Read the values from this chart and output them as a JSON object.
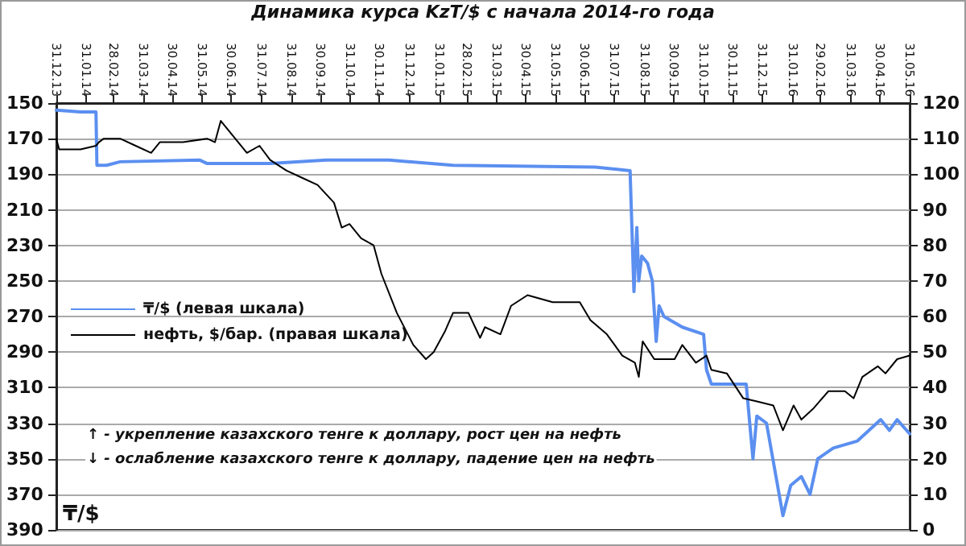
{
  "chart_data": {
    "type": "line",
    "title": "Динамика курса KzT/$ с начала 2014-го года",
    "ylabel": "₸/$",
    "annotations": [
      "↑ - укрепление казахского тенге к доллару, рост цен на нефть",
      "↓ - ослабление казахского тенге к доллару, падение цен на нефть"
    ],
    "xlim": [
      "2013-12-31",
      "2016-05-31"
    ],
    "xticks": [
      {
        "value": "2013-12-31",
        "label": "31.12.13"
      },
      {
        "value": "2014-01-31",
        "label": "31.01.14"
      },
      {
        "value": "2014-02-28",
        "label": "28.02.14"
      },
      {
        "value": "2014-03-31",
        "label": "31.03.14"
      },
      {
        "value": "2014-04-30",
        "label": "30.04.14"
      },
      {
        "value": "2014-05-31",
        "label": "31.05.14"
      },
      {
        "value": "2014-06-30",
        "label": "30.06.14"
      },
      {
        "value": "2014-07-31",
        "label": "31.07.14"
      },
      {
        "value": "2014-08-31",
        "label": "31.08.14"
      },
      {
        "value": "2014-09-30",
        "label": "30.09.14"
      },
      {
        "value": "2014-10-31",
        "label": "31.10.14"
      },
      {
        "value": "2014-11-30",
        "label": "30.11.14"
      },
      {
        "value": "2014-12-31",
        "label": "31.12.14"
      },
      {
        "value": "2015-01-31",
        "label": "31.01.15"
      },
      {
        "value": "2015-02-28",
        "label": "28.02.15"
      },
      {
        "value": "2015-03-31",
        "label": "31.03.15"
      },
      {
        "value": "2015-04-30",
        "label": "30.04.15"
      },
      {
        "value": "2015-05-31",
        "label": "31.05.15"
      },
      {
        "value": "2015-06-30",
        "label": "30.06.15"
      },
      {
        "value": "2015-07-31",
        "label": "31.07.15"
      },
      {
        "value": "2015-08-31",
        "label": "31.08.15"
      },
      {
        "value": "2015-09-30",
        "label": "30.09.15"
      },
      {
        "value": "2015-10-31",
        "label": "31.10.15"
      },
      {
        "value": "2015-11-30",
        "label": "30.11.15"
      },
      {
        "value": "2015-12-31",
        "label": "31.12.15"
      },
      {
        "value": "2016-01-31",
        "label": "31.01.16"
      },
      {
        "value": "2016-02-29",
        "label": "29.02.16"
      },
      {
        "value": "2016-03-31",
        "label": "31.03.16"
      },
      {
        "value": "2016-04-30",
        "label": "30.04.16"
      },
      {
        "value": "2016-05-31",
        "label": "31.05.16"
      }
    ],
    "ylim": [
      390,
      150
    ],
    "yticks": [
      150,
      170,
      190,
      210,
      230,
      250,
      270,
      290,
      310,
      330,
      350,
      370,
      390
    ],
    "y2lim": [
      0,
      120
    ],
    "y2ticks": [
      0,
      10,
      20,
      30,
      40,
      50,
      60,
      70,
      80,
      90,
      100,
      110,
      120
    ],
    "grid": "y",
    "legend": "center left",
    "marker": "none",
    "line_style": "solid",
    "series": [
      {
        "name": "₸/$ (левая шкала)",
        "color": "#5b8ff0",
        "x": [
          "2013-12-31",
          "2014-01-25",
          "2014-02-10",
          "2014-02-11",
          "2014-02-21",
          "2014-03-07",
          "2014-05-28",
          "2014-06-05",
          "2014-08-09",
          "2014-10-06",
          "2014-12-10",
          "2015-02-14",
          "2015-07-11",
          "2015-08-16",
          "2015-08-20",
          "2015-08-23",
          "2015-08-25",
          "2015-08-28",
          "2015-09-03",
          "2015-09-08",
          "2015-09-12",
          "2015-09-15",
          "2015-09-20",
          "2015-10-09",
          "2015-10-31",
          "2015-11-03",
          "2015-11-08",
          "2015-12-14",
          "2015-12-21",
          "2015-12-25",
          "2016-01-04",
          "2016-01-21",
          "2016-01-29",
          "2016-02-09",
          "2016-02-18",
          "2016-02-26",
          "2016-03-13",
          "2016-04-07",
          "2016-05-01",
          "2016-05-10",
          "2016-05-18",
          "2016-05-31"
        ],
        "values": [
          154,
          155,
          155,
          185,
          185,
          183,
          182,
          184,
          184,
          182,
          182,
          185,
          186,
          188,
          256,
          220,
          250,
          236,
          240,
          250,
          284,
          264,
          270,
          276,
          280,
          300,
          308,
          308,
          350,
          326,
          330,
          382,
          365,
          360,
          370,
          350,
          344,
          340,
          328,
          334,
          328,
          336
        ]
      },
      {
        "name": "нефть, $/бар. (правая шкала)",
        "color": "#000000",
        "axis": "y2",
        "x": [
          "2013-12-31",
          "2014-01-03",
          "2014-01-25",
          "2014-02-10",
          "2014-02-13",
          "2014-02-18",
          "2014-03-07",
          "2014-03-23",
          "2014-04-08",
          "2014-04-17",
          "2014-05-11",
          "2014-06-05",
          "2014-06-13",
          "2014-06-19",
          "2014-07-07",
          "2014-07-16",
          "2014-07-29",
          "2014-08-09",
          "2014-08-26",
          "2014-09-11",
          "2014-09-27",
          "2014-10-14",
          "2014-10-22",
          "2014-10-30",
          "2014-11-11",
          "2014-11-24",
          "2014-12-02",
          "2014-12-18",
          "2015-01-04",
          "2015-01-17",
          "2015-01-25",
          "2015-02-06",
          "2015-02-14",
          "2015-03-02",
          "2015-03-14",
          "2015-03-19",
          "2015-04-04",
          "2015-04-15",
          "2015-05-02",
          "2015-05-28",
          "2015-06-25",
          "2015-07-06",
          "2015-07-23",
          "2015-08-08",
          "2015-08-21",
          "2015-08-25",
          "2015-08-29",
          "2015-09-10",
          "2015-10-01",
          "2015-10-09",
          "2015-10-23",
          "2015-11-03",
          "2015-11-08",
          "2015-11-24",
          "2015-12-11",
          "2015-12-27",
          "2016-01-11",
          "2016-01-21",
          "2016-02-01",
          "2016-02-09",
          "2016-02-21",
          "2016-03-08",
          "2016-03-25",
          "2016-04-03",
          "2016-04-12",
          "2016-04-28",
          "2016-05-06",
          "2016-05-18",
          "2016-05-31"
        ],
        "values": [
          110,
          107,
          107,
          108,
          109,
          110,
          110,
          108,
          106,
          109,
          109,
          110,
          109,
          115,
          109,
          106,
          108,
          104,
          101,
          99,
          97,
          92,
          85,
          86,
          82,
          80,
          72,
          61,
          52,
          48,
          50,
          56,
          61,
          61,
          54,
          57,
          55,
          63,
          66,
          64,
          64,
          59,
          55,
          49,
          47,
          43,
          53,
          48,
          48,
          52,
          47,
          49,
          45,
          44,
          37,
          36,
          35,
          28,
          35,
          31,
          34,
          39,
          39,
          37,
          43,
          46,
          44,
          48,
          49
        ]
      }
    ]
  }
}
